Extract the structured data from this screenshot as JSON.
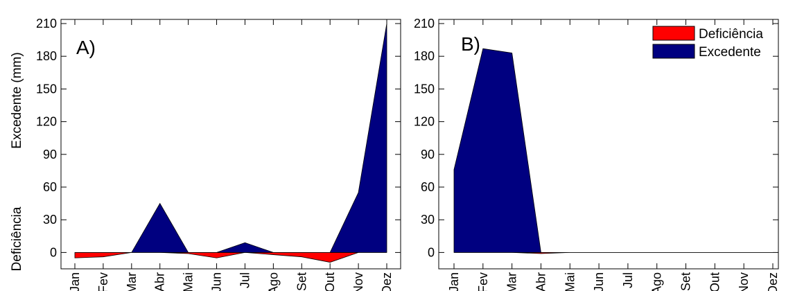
{
  "chart_data": [
    {
      "type": "area",
      "panel_label": "A)",
      "ylabel_top": "Excedente (mm)",
      "ylabel_bottom": "Deficiência",
      "categories": [
        "Jan",
        "Fev",
        "Mar",
        "Abr",
        "Mai",
        "Jun",
        "Jul",
        "Ago",
        "Set",
        "Out",
        "Nov",
        "Dez"
      ],
      "ylim": [
        -15,
        210
      ],
      "yticks": [
        0,
        30,
        60,
        90,
        120,
        150,
        180,
        210
      ],
      "series": [
        {
          "name": "Deficiência",
          "color": "#ff0000",
          "values": [
            -5,
            -4,
            0,
            0,
            -1,
            -5,
            0,
            -2,
            -4,
            -9,
            0,
            0
          ]
        },
        {
          "name": "Excedente",
          "color": "#000080",
          "values": [
            0,
            0,
            0,
            45,
            0,
            0,
            9,
            0,
            0,
            0,
            55,
            210
          ]
        }
      ]
    },
    {
      "type": "area",
      "panel_label": "B)",
      "categories": [
        "Jan",
        "Fev",
        "Mar",
        "Abr",
        "Mai",
        "Jun",
        "Jul",
        "Ago",
        "Set",
        "Out",
        "Nov",
        "Dez"
      ],
      "ylim": [
        -15,
        210
      ],
      "yticks": [
        0,
        30,
        60,
        90,
        120,
        150,
        180,
        210
      ],
      "legend_position": "top-right",
      "series": [
        {
          "name": "Deficiência",
          "color": "#ff0000",
          "values": [
            0,
            0,
            0,
            -1,
            0,
            0,
            0,
            0,
            0,
            0,
            0,
            0
          ]
        },
        {
          "name": "Excedente",
          "color": "#000080",
          "values": [
            76,
            187,
            183,
            0,
            0,
            0,
            0,
            0,
            0,
            0,
            0,
            0
          ]
        }
      ]
    }
  ]
}
